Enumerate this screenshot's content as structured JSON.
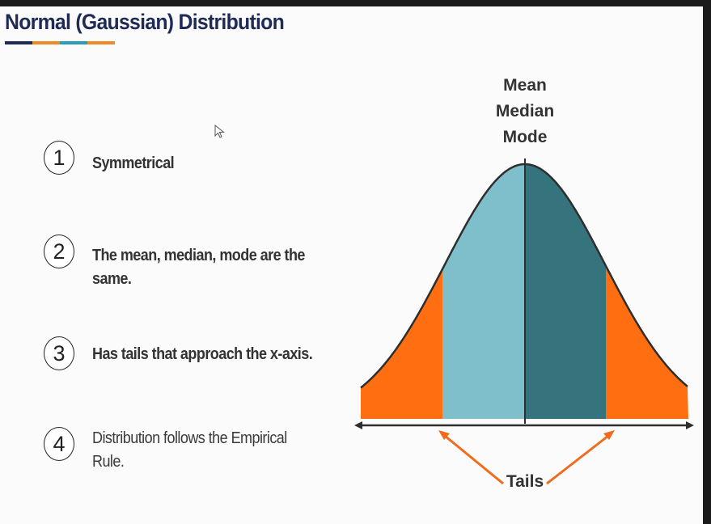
{
  "title": "Normal (Gaussian) Distribution",
  "title_bar_colors": [
    "#1f2b55",
    "#f08a24",
    "#2a9db5",
    "#f08a24"
  ],
  "items": [
    {
      "number": "1",
      "text": "Symmetrical",
      "style": "bold"
    },
    {
      "number": "2",
      "text": "The mean, median, mode are the same.",
      "style": "bold"
    },
    {
      "number": "3",
      "text": "Has tails that approach the x-axis.",
      "style": "bold"
    },
    {
      "number": "4",
      "text": "Distribution follows the Empirical Rule.",
      "style": "light"
    }
  ],
  "diagram": {
    "center_label_lines": [
      "Mean",
      "Median",
      "Mode"
    ],
    "tails_label": "Tails",
    "colors": {
      "left_half": "#7fbfcc",
      "right_half": "#35737d",
      "tails": "#ff6f12",
      "arrows": "#f26a1b",
      "outline": "#2e2e2e"
    }
  }
}
